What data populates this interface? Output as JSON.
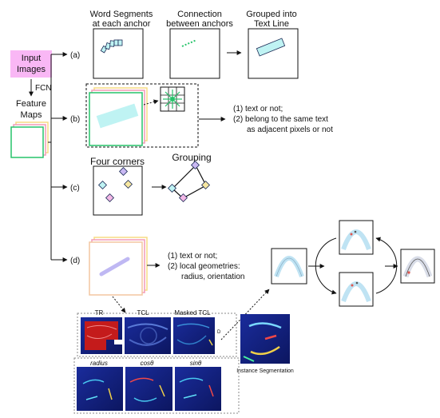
{
  "input": {
    "line1": "Input",
    "line2": "Images"
  },
  "fcn_label": "FCN",
  "feature": {
    "line1": "Feature",
    "line2": "Maps"
  },
  "branches": {
    "a": "(a)",
    "b": "(b)",
    "c": "(c)",
    "d": "(d)"
  },
  "row_a": {
    "col1": [
      "Word Segments",
      "at each anchor"
    ],
    "col2": [
      "Connection",
      "between anchors"
    ],
    "col3": [
      "Grouped into",
      "Text Line"
    ]
  },
  "row_b": {
    "out1": "(1)  text or not;",
    "out2a": "(2)  belong to the same text",
    "out2b": "as adjacent pixels or not"
  },
  "row_c": {
    "title1": "Four corners",
    "title2": "Grouping"
  },
  "row_d": {
    "out1": "(1)  text or not;",
    "out2a": "(2)  local geometries:",
    "out2b": "radius, orientation"
  },
  "maps": {
    "tr": "TR",
    "tcl": "TCL",
    "masked": "Masked TCL",
    "d_mark": "D",
    "radius": "radius",
    "cos": "cosθ",
    "sin": "sinθ",
    "instance": "Instance Segmentation"
  },
  "colors": {
    "input_fill": "#f9b7f5",
    "green": "#27c36a",
    "pink": "#f39ab7",
    "yellow": "#f7dc84",
    "cyan": "#bff3f3",
    "map_bg": "#0f1d7a"
  }
}
